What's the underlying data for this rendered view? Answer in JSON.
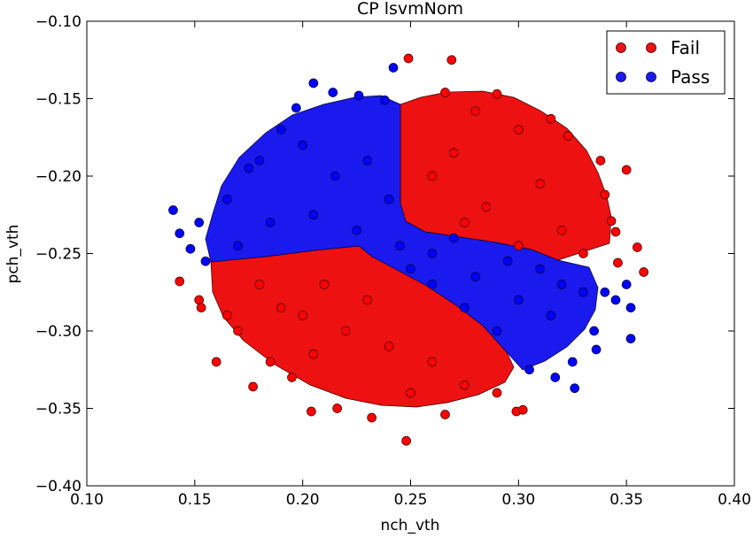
{
  "chart_data": {
    "type": "scatter",
    "title": "CP lsvmNom",
    "xlabel": "nch_vth",
    "ylabel": "pch_vth",
    "xlim": [
      0.1,
      0.4
    ],
    "ylim": [
      -0.4,
      -0.1
    ],
    "xticks": [
      "0.10",
      "0.15",
      "0.20",
      "0.25",
      "0.30",
      "0.35",
      "0.40"
    ],
    "yticks": [
      "−0.10",
      "−0.15",
      "−0.20",
      "−0.25",
      "−0.30",
      "−0.35",
      "−0.40"
    ],
    "xtick_values": [
      0.1,
      0.15,
      0.2,
      0.25,
      0.3,
      0.35,
      0.4
    ],
    "ytick_values": [
      -0.1,
      -0.15,
      -0.2,
      -0.25,
      -0.3,
      -0.35,
      -0.4
    ],
    "grid": false,
    "legend_position": "top-right",
    "series": [
      {
        "name": "Fail",
        "color": "#ff0000",
        "points": [
          [
            0.249,
            -0.124
          ],
          [
            0.269,
            -0.125
          ],
          [
            0.29,
            -0.147
          ],
          [
            0.266,
            -0.146
          ],
          [
            0.315,
            -0.163
          ],
          [
            0.323,
            -0.174
          ],
          [
            0.338,
            -0.19
          ],
          [
            0.35,
            -0.196
          ],
          [
            0.34,
            -0.212
          ],
          [
            0.343,
            -0.229
          ],
          [
            0.345,
            -0.236
          ],
          [
            0.355,
            -0.246
          ],
          [
            0.346,
            -0.256
          ],
          [
            0.358,
            -0.262
          ],
          [
            0.28,
            -0.158
          ],
          [
            0.3,
            -0.17
          ],
          [
            0.27,
            -0.185
          ],
          [
            0.31,
            -0.205
          ],
          [
            0.285,
            -0.22
          ],
          [
            0.32,
            -0.235
          ],
          [
            0.26,
            -0.2
          ],
          [
            0.33,
            -0.25
          ],
          [
            0.3,
            -0.245
          ],
          [
            0.275,
            -0.23
          ],
          [
            0.143,
            -0.268
          ],
          [
            0.152,
            -0.28
          ],
          [
            0.153,
            -0.285
          ],
          [
            0.165,
            -0.29
          ],
          [
            0.16,
            -0.32
          ],
          [
            0.177,
            -0.336
          ],
          [
            0.185,
            -0.32
          ],
          [
            0.195,
            -0.33
          ],
          [
            0.204,
            -0.352
          ],
          [
            0.216,
            -0.35
          ],
          [
            0.232,
            -0.356
          ],
          [
            0.248,
            -0.371
          ],
          [
            0.266,
            -0.354
          ],
          [
            0.299,
            -0.352
          ],
          [
            0.302,
            -0.351
          ],
          [
            0.29,
            -0.34
          ],
          [
            0.2,
            -0.29
          ],
          [
            0.22,
            -0.3
          ],
          [
            0.24,
            -0.31
          ],
          [
            0.18,
            -0.27
          ],
          [
            0.21,
            -0.27
          ],
          [
            0.23,
            -0.28
          ],
          [
            0.26,
            -0.32
          ],
          [
            0.275,
            -0.335
          ],
          [
            0.25,
            -0.34
          ],
          [
            0.205,
            -0.315
          ],
          [
            0.17,
            -0.3
          ],
          [
            0.19,
            -0.285
          ]
        ]
      },
      {
        "name": "Pass",
        "color": "#0000ff",
        "points": [
          [
            0.14,
            -0.222
          ],
          [
            0.143,
            -0.237
          ],
          [
            0.148,
            -0.247
          ],
          [
            0.152,
            -0.23
          ],
          [
            0.155,
            -0.255
          ],
          [
            0.165,
            -0.215
          ],
          [
            0.175,
            -0.195
          ],
          [
            0.19,
            -0.17
          ],
          [
            0.197,
            -0.156
          ],
          [
            0.205,
            -0.14
          ],
          [
            0.214,
            -0.146
          ],
          [
            0.226,
            -0.148
          ],
          [
            0.238,
            -0.151
          ],
          [
            0.242,
            -0.13
          ],
          [
            0.18,
            -0.19
          ],
          [
            0.2,
            -0.18
          ],
          [
            0.215,
            -0.2
          ],
          [
            0.23,
            -0.19
          ],
          [
            0.185,
            -0.23
          ],
          [
            0.205,
            -0.225
          ],
          [
            0.225,
            -0.235
          ],
          [
            0.24,
            -0.215
          ],
          [
            0.245,
            -0.245
          ],
          [
            0.17,
            -0.245
          ],
          [
            0.26,
            -0.25
          ],
          [
            0.28,
            -0.265
          ],
          [
            0.3,
            -0.28
          ],
          [
            0.315,
            -0.29
          ],
          [
            0.32,
            -0.27
          ],
          [
            0.33,
            -0.275
          ],
          [
            0.335,
            -0.3
          ],
          [
            0.34,
            -0.275
          ],
          [
            0.345,
            -0.28
          ],
          [
            0.35,
            -0.27
          ],
          [
            0.352,
            -0.285
          ],
          [
            0.352,
            -0.305
          ],
          [
            0.336,
            -0.312
          ],
          [
            0.325,
            -0.32
          ],
          [
            0.326,
            -0.337
          ],
          [
            0.317,
            -0.33
          ],
          [
            0.305,
            -0.325
          ],
          [
            0.29,
            -0.3
          ],
          [
            0.275,
            -0.285
          ],
          [
            0.26,
            -0.27
          ],
          [
            0.25,
            -0.26
          ],
          [
            0.31,
            -0.26
          ],
          [
            0.295,
            -0.255
          ],
          [
            0.27,
            -0.24
          ]
        ]
      }
    ]
  }
}
